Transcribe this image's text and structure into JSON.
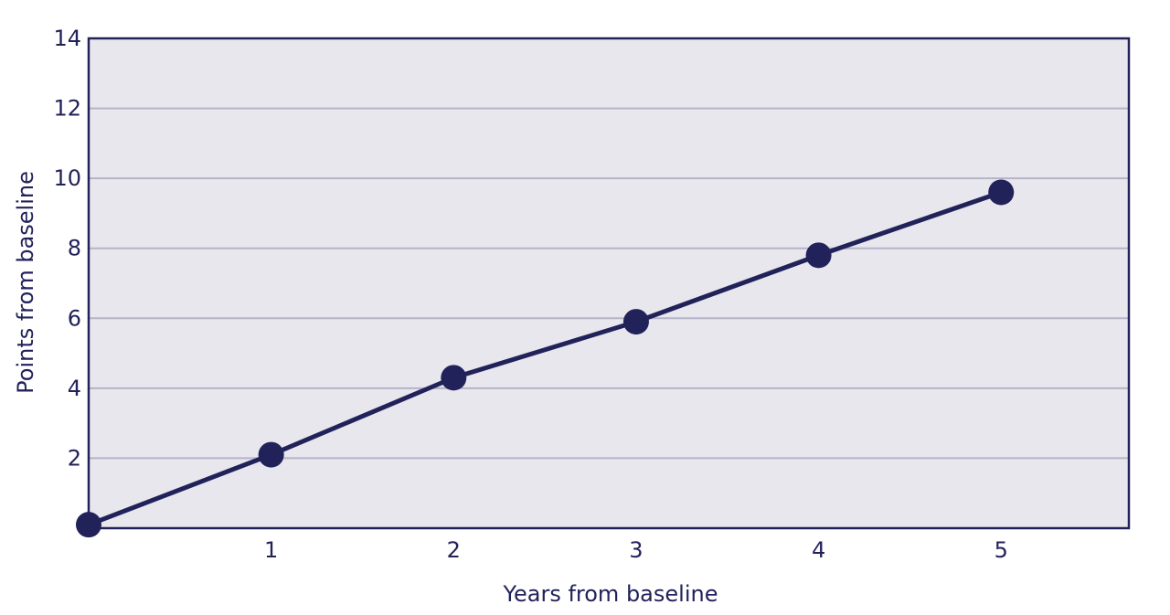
{
  "chart_data": {
    "type": "line",
    "title": "",
    "xlabel": "Years from baseline",
    "ylabel": "Points from baseline",
    "x_ticks": [
      "1",
      "2",
      "3",
      "4",
      "5"
    ],
    "y_ticks": [
      "2",
      "4",
      "6",
      "8",
      "10",
      "12",
      "14"
    ],
    "xlim": [
      0,
      5.7
    ],
    "ylim": [
      0,
      14
    ],
    "grid": true,
    "series": [
      {
        "x": [
          0,
          1,
          2,
          3,
          4,
          5
        ],
        "y": [
          0.1,
          2.1,
          4.3,
          5.9,
          7.8,
          9.6
        ]
      }
    ]
  },
  "colors": {
    "line": "#22225a",
    "marker": "#22225a",
    "plot_background": "#e8e7ee",
    "grid": "#b5b4c8",
    "axis": "#22225a",
    "text": "#22225a"
  }
}
